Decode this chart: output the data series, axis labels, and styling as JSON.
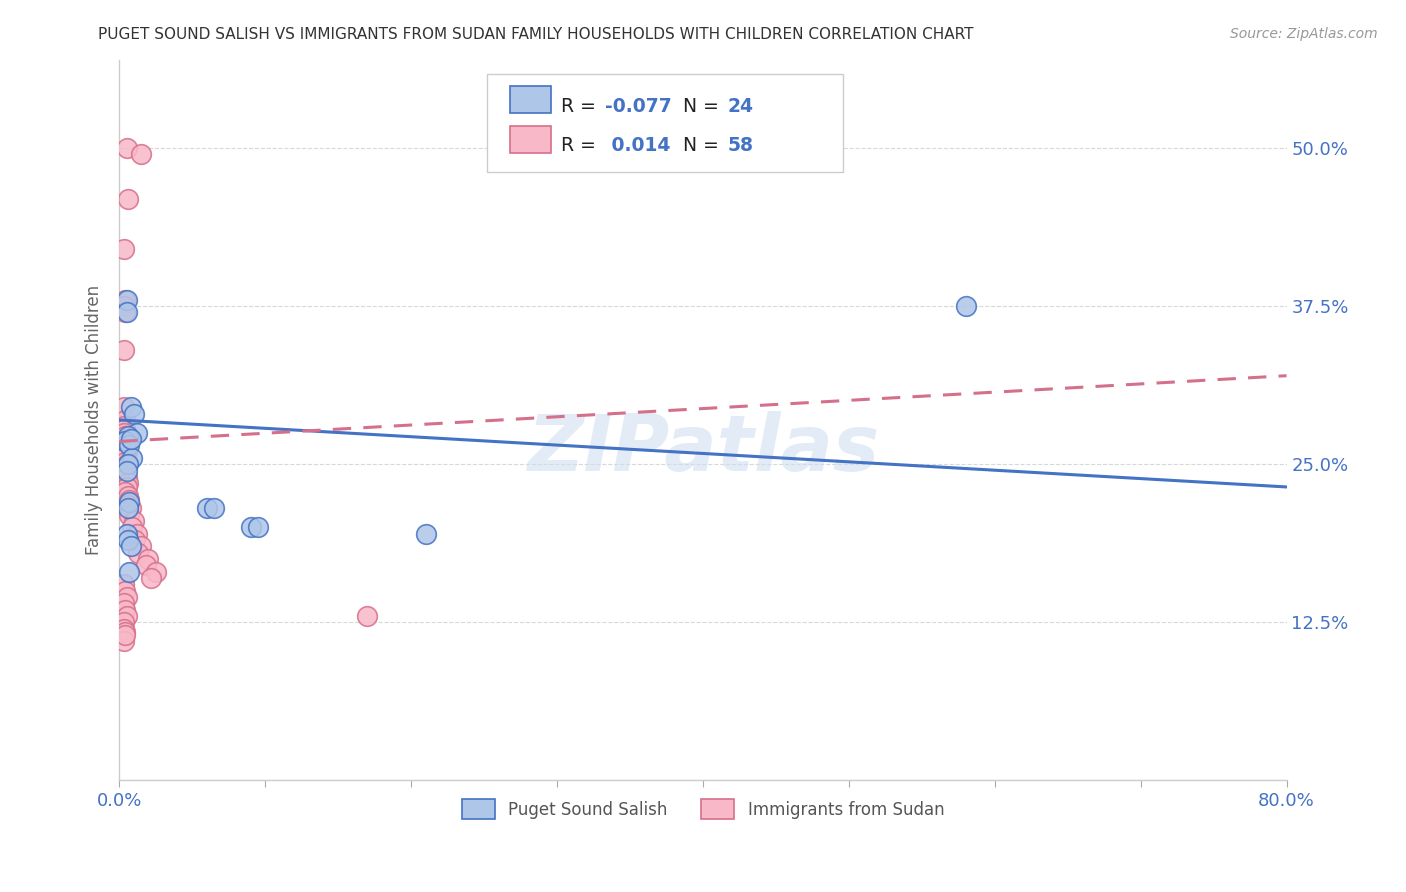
{
  "title": "PUGET SOUND SALISH VS IMMIGRANTS FROM SUDAN FAMILY HOUSEHOLDS WITH CHILDREN CORRELATION CHART",
  "source": "Source: ZipAtlas.com",
  "ylabel": "Family Households with Children",
  "xlim": [
    0.0,
    0.8
  ],
  "ylim": [
    0.0,
    0.57
  ],
  "yticks": [
    0.0,
    0.125,
    0.25,
    0.375,
    0.5
  ],
  "ytick_labels": [
    "",
    "12.5%",
    "25.0%",
    "37.5%",
    "50.0%"
  ],
  "xticks": [
    0.0,
    0.1,
    0.2,
    0.3,
    0.4,
    0.5,
    0.6,
    0.7,
    0.8
  ],
  "xtick_labels": [
    "0.0%",
    "",
    "",
    "",
    "",
    "",
    "",
    "",
    "80.0%"
  ],
  "background_color": "#ffffff",
  "grid_color": "#d8d8d8",
  "watermark": "ZIPatlas",
  "blue_color": "#aec6e8",
  "blue_edge": "#4472c4",
  "pink_color": "#f9b8c8",
  "pink_edge": "#d4708a",
  "blue_label": "Puget Sound Salish",
  "pink_label": "Immigrants from Sudan",
  "blue_R": "-0.077",
  "blue_N": "24",
  "pink_R": "0.014",
  "pink_N": "58",
  "blue_trend": [
    0.285,
    0.232
  ],
  "pink_trend": [
    0.268,
    0.32
  ],
  "blue_x": [
    0.005,
    0.005,
    0.008,
    0.01,
    0.012,
    0.006,
    0.004,
    0.007,
    0.009,
    0.006,
    0.005,
    0.007,
    0.006,
    0.008,
    0.06,
    0.065,
    0.09,
    0.095,
    0.58,
    0.005,
    0.006,
    0.008,
    0.21,
    0.007
  ],
  "blue_y": [
    0.38,
    0.37,
    0.295,
    0.29,
    0.275,
    0.272,
    0.268,
    0.265,
    0.255,
    0.25,
    0.245,
    0.22,
    0.215,
    0.27,
    0.215,
    0.215,
    0.2,
    0.2,
    0.375,
    0.195,
    0.19,
    0.185,
    0.195,
    0.165
  ],
  "pink_x": [
    0.005,
    0.015,
    0.006,
    0.003,
    0.004,
    0.003,
    0.004,
    0.003,
    0.003,
    0.004,
    0.003,
    0.004,
    0.003,
    0.004,
    0.005,
    0.003,
    0.004,
    0.003,
    0.005,
    0.004,
    0.003,
    0.004,
    0.005,
    0.003,
    0.004,
    0.003,
    0.005,
    0.004,
    0.006,
    0.005,
    0.004,
    0.006,
    0.007,
    0.006,
    0.008,
    0.007,
    0.01,
    0.009,
    0.012,
    0.011,
    0.015,
    0.013,
    0.02,
    0.018,
    0.025,
    0.022,
    0.003,
    0.004,
    0.005,
    0.003,
    0.004,
    0.005,
    0.003,
    0.17,
    0.003,
    0.004,
    0.003,
    0.004
  ],
  "pink_y": [
    0.5,
    0.495,
    0.46,
    0.42,
    0.38,
    0.375,
    0.37,
    0.34,
    0.295,
    0.285,
    0.28,
    0.278,
    0.275,
    0.272,
    0.27,
    0.268,
    0.265,
    0.262,
    0.26,
    0.258,
    0.255,
    0.252,
    0.25,
    0.248,
    0.245,
    0.242,
    0.24,
    0.238,
    0.235,
    0.232,
    0.228,
    0.225,
    0.222,
    0.218,
    0.215,
    0.21,
    0.205,
    0.2,
    0.195,
    0.19,
    0.185,
    0.18,
    0.175,
    0.17,
    0.165,
    0.16,
    0.155,
    0.15,
    0.145,
    0.14,
    0.135,
    0.13,
    0.125,
    0.13,
    0.12,
    0.117,
    0.11,
    0.115
  ]
}
